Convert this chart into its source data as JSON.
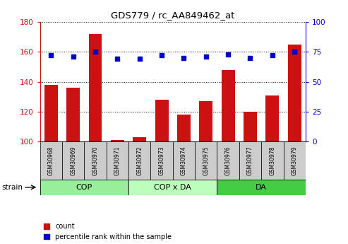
{
  "title": "GDS779 / rc_AA849462_at",
  "categories": [
    "GSM30968",
    "GSM30969",
    "GSM30970",
    "GSM30971",
    "GSM30972",
    "GSM30973",
    "GSM30974",
    "GSM30975",
    "GSM30976",
    "GSM30977",
    "GSM30978",
    "GSM30979"
  ],
  "bar_values": [
    138,
    136,
    172,
    101,
    103,
    128,
    118,
    127,
    148,
    120,
    131,
    165
  ],
  "scatter_values": [
    72,
    71,
    75,
    69,
    69,
    72,
    70,
    71,
    73,
    70,
    72,
    75
  ],
  "bar_color": "#cc1111",
  "scatter_color": "#0000cc",
  "bar_bottom": 100,
  "ylim_left": [
    100,
    180
  ],
  "ylim_right": [
    0,
    100
  ],
  "yticks_left": [
    100,
    120,
    140,
    160,
    180
  ],
  "yticks_right": [
    0,
    25,
    50,
    75,
    100
  ],
  "groups": [
    {
      "label": "COP",
      "start": 0,
      "end": 3,
      "color": "#99ee99"
    },
    {
      "label": "COP x DA",
      "start": 4,
      "end": 7,
      "color": "#bbffbb"
    },
    {
      "label": "DA",
      "start": 8,
      "end": 11,
      "color": "#44cc44"
    }
  ],
  "strain_label": "strain",
  "legend_count": "count",
  "legend_percentile": "percentile rank within the sample",
  "tick_bg_color": "#cccccc",
  "grid_color": "#000000",
  "bg_color": "#ffffff"
}
